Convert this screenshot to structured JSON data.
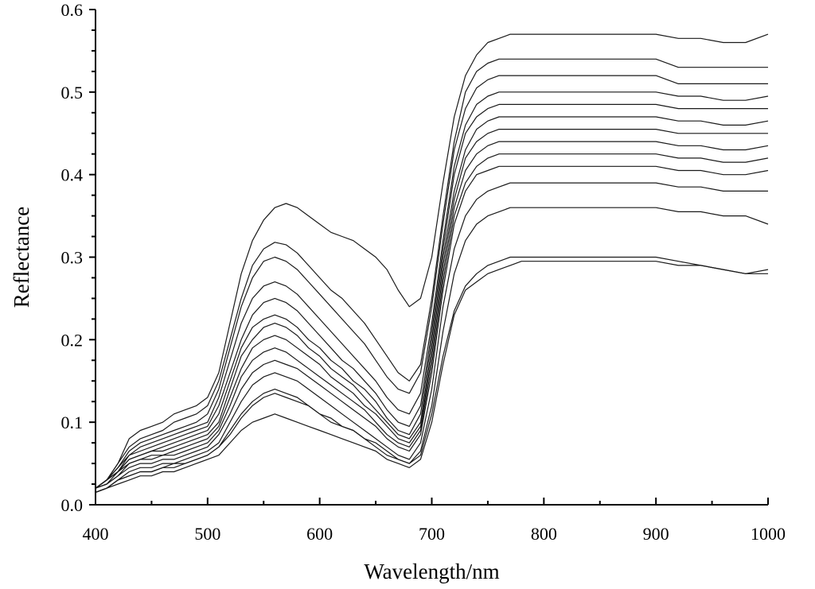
{
  "chart_data": {
    "type": "line",
    "title": "",
    "xlabel": "Wavelength/nm",
    "ylabel": "Reflectance",
    "xlim": [
      400,
      1000
    ],
    "ylim": [
      0,
      0.6
    ],
    "x_ticks": [
      400,
      500,
      600,
      700,
      800,
      900,
      1000
    ],
    "x_tick_labels": [
      "400",
      "500",
      "600",
      "700",
      "800",
      "900",
      "1000"
    ],
    "y_ticks": [
      0.0,
      0.1,
      0.2,
      0.3,
      0.4,
      0.5,
      0.6
    ],
    "y_tick_labels": [
      "0.0",
      "0.1",
      "0.2",
      "0.3",
      "0.4",
      "0.5",
      "0.6"
    ],
    "grid": false,
    "legend": "none",
    "line_color": "#1a1a1a",
    "x": [
      400,
      410,
      420,
      430,
      440,
      450,
      460,
      470,
      480,
      490,
      500,
      510,
      520,
      530,
      540,
      550,
      560,
      570,
      580,
      590,
      600,
      610,
      620,
      630,
      640,
      650,
      660,
      670,
      680,
      690,
      700,
      710,
      720,
      730,
      740,
      750,
      760,
      770,
      780,
      790,
      800,
      820,
      840,
      860,
      880,
      900,
      920,
      940,
      960,
      980,
      1000
    ],
    "series": [
      {
        "values": [
          0.02,
          0.03,
          0.05,
          0.08,
          0.09,
          0.095,
          0.1,
          0.11,
          0.115,
          0.12,
          0.13,
          0.16,
          0.22,
          0.28,
          0.32,
          0.345,
          0.36,
          0.365,
          0.36,
          0.35,
          0.34,
          0.33,
          0.325,
          0.32,
          0.31,
          0.3,
          0.285,
          0.26,
          0.24,
          0.25,
          0.3,
          0.39,
          0.47,
          0.52,
          0.545,
          0.56,
          0.565,
          0.57,
          0.57,
          0.57,
          0.57,
          0.57,
          0.57,
          0.57,
          0.57,
          0.57,
          0.565,
          0.565,
          0.56,
          0.56,
          0.57
        ]
      },
      {
        "values": [
          0.02,
          0.03,
          0.05,
          0.07,
          0.08,
          0.085,
          0.09,
          0.1,
          0.105,
          0.11,
          0.12,
          0.15,
          0.2,
          0.25,
          0.29,
          0.31,
          0.318,
          0.315,
          0.305,
          0.29,
          0.275,
          0.26,
          0.25,
          0.235,
          0.22,
          0.2,
          0.18,
          0.16,
          0.15,
          0.17,
          0.25,
          0.35,
          0.44,
          0.5,
          0.525,
          0.535,
          0.54,
          0.54,
          0.54,
          0.54,
          0.54,
          0.54,
          0.54,
          0.54,
          0.54,
          0.54,
          0.53,
          0.53,
          0.53,
          0.53,
          0.53
        ]
      },
      {
        "values": [
          0.02,
          0.03,
          0.045,
          0.065,
          0.075,
          0.08,
          0.085,
          0.09,
          0.095,
          0.1,
          0.11,
          0.14,
          0.19,
          0.24,
          0.275,
          0.295,
          0.3,
          0.295,
          0.285,
          0.27,
          0.255,
          0.24,
          0.225,
          0.21,
          0.195,
          0.175,
          0.155,
          0.14,
          0.135,
          0.16,
          0.24,
          0.34,
          0.43,
          0.48,
          0.505,
          0.515,
          0.52,
          0.52,
          0.52,
          0.52,
          0.52,
          0.52,
          0.52,
          0.52,
          0.52,
          0.52,
          0.51,
          0.51,
          0.51,
          0.51,
          0.51
        ]
      },
      {
        "values": [
          0.02,
          0.03,
          0.045,
          0.06,
          0.07,
          0.075,
          0.08,
          0.085,
          0.09,
          0.095,
          0.1,
          0.13,
          0.175,
          0.22,
          0.25,
          0.265,
          0.27,
          0.265,
          0.255,
          0.24,
          0.225,
          0.21,
          0.195,
          0.18,
          0.165,
          0.15,
          0.13,
          0.115,
          0.11,
          0.135,
          0.22,
          0.32,
          0.41,
          0.46,
          0.485,
          0.495,
          0.5,
          0.5,
          0.5,
          0.5,
          0.5,
          0.5,
          0.5,
          0.5,
          0.5,
          0.5,
          0.495,
          0.495,
          0.49,
          0.49,
          0.495
        ]
      },
      {
        "values": [
          0.02,
          0.03,
          0.04,
          0.06,
          0.065,
          0.07,
          0.075,
          0.08,
          0.085,
          0.09,
          0.095,
          0.12,
          0.16,
          0.2,
          0.23,
          0.245,
          0.25,
          0.245,
          0.235,
          0.22,
          0.205,
          0.19,
          0.175,
          0.165,
          0.15,
          0.135,
          0.115,
          0.1,
          0.095,
          0.12,
          0.21,
          0.31,
          0.4,
          0.45,
          0.47,
          0.48,
          0.485,
          0.485,
          0.485,
          0.485,
          0.485,
          0.485,
          0.485,
          0.485,
          0.485,
          0.485,
          0.48,
          0.48,
          0.48,
          0.48,
          0.48
        ]
      },
      {
        "values": [
          0.02,
          0.03,
          0.04,
          0.055,
          0.06,
          0.065,
          0.07,
          0.075,
          0.08,
          0.085,
          0.09,
          0.11,
          0.15,
          0.19,
          0.215,
          0.225,
          0.23,
          0.225,
          0.215,
          0.2,
          0.19,
          0.175,
          0.165,
          0.15,
          0.14,
          0.125,
          0.105,
          0.09,
          0.085,
          0.11,
          0.2,
          0.3,
          0.38,
          0.43,
          0.455,
          0.465,
          0.47,
          0.47,
          0.47,
          0.47,
          0.47,
          0.47,
          0.47,
          0.47,
          0.47,
          0.47,
          0.465,
          0.465,
          0.46,
          0.46,
          0.465
        ]
      },
      {
        "values": [
          0.02,
          0.03,
          0.04,
          0.055,
          0.06,
          0.065,
          0.065,
          0.07,
          0.075,
          0.08,
          0.085,
          0.1,
          0.14,
          0.18,
          0.2,
          0.215,
          0.22,
          0.215,
          0.205,
          0.19,
          0.18,
          0.165,
          0.155,
          0.145,
          0.13,
          0.115,
          0.1,
          0.085,
          0.08,
          0.1,
          0.19,
          0.29,
          0.37,
          0.42,
          0.44,
          0.45,
          0.455,
          0.455,
          0.455,
          0.455,
          0.455,
          0.455,
          0.455,
          0.455,
          0.455,
          0.455,
          0.45,
          0.45,
          0.45,
          0.45,
          0.45
        ]
      },
      {
        "values": [
          0.02,
          0.025,
          0.04,
          0.05,
          0.055,
          0.06,
          0.06,
          0.065,
          0.07,
          0.075,
          0.08,
          0.095,
          0.13,
          0.165,
          0.19,
          0.2,
          0.205,
          0.2,
          0.19,
          0.18,
          0.17,
          0.155,
          0.145,
          0.135,
          0.12,
          0.11,
          0.095,
          0.08,
          0.075,
          0.095,
          0.18,
          0.28,
          0.36,
          0.405,
          0.425,
          0.435,
          0.44,
          0.44,
          0.44,
          0.44,
          0.44,
          0.44,
          0.44,
          0.44,
          0.44,
          0.44,
          0.435,
          0.435,
          0.43,
          0.43,
          0.435
        ]
      },
      {
        "values": [
          0.02,
          0.025,
          0.035,
          0.05,
          0.055,
          0.055,
          0.06,
          0.06,
          0.065,
          0.07,
          0.075,
          0.09,
          0.12,
          0.155,
          0.175,
          0.185,
          0.19,
          0.185,
          0.175,
          0.165,
          0.155,
          0.145,
          0.135,
          0.125,
          0.115,
          0.1,
          0.085,
          0.075,
          0.07,
          0.09,
          0.17,
          0.27,
          0.35,
          0.39,
          0.41,
          0.42,
          0.425,
          0.425,
          0.425,
          0.425,
          0.425,
          0.425,
          0.425,
          0.425,
          0.425,
          0.425,
          0.42,
          0.42,
          0.415,
          0.415,
          0.42
        ]
      },
      {
        "values": [
          0.02,
          0.025,
          0.035,
          0.045,
          0.05,
          0.05,
          0.055,
          0.055,
          0.06,
          0.065,
          0.07,
          0.085,
          0.11,
          0.14,
          0.16,
          0.17,
          0.175,
          0.17,
          0.165,
          0.155,
          0.145,
          0.135,
          0.125,
          0.115,
          0.105,
          0.095,
          0.08,
          0.07,
          0.065,
          0.085,
          0.16,
          0.26,
          0.34,
          0.38,
          0.4,
          0.405,
          0.41,
          0.41,
          0.41,
          0.41,
          0.41,
          0.41,
          0.41,
          0.41,
          0.41,
          0.41,
          0.405,
          0.405,
          0.4,
          0.4,
          0.405
        ]
      },
      {
        "values": [
          0.015,
          0.02,
          0.03,
          0.04,
          0.045,
          0.045,
          0.05,
          0.05,
          0.055,
          0.06,
          0.065,
          0.075,
          0.1,
          0.125,
          0.145,
          0.155,
          0.16,
          0.155,
          0.15,
          0.14,
          0.13,
          0.12,
          0.11,
          0.1,
          0.09,
          0.08,
          0.07,
          0.06,
          0.055,
          0.075,
          0.14,
          0.24,
          0.31,
          0.35,
          0.37,
          0.38,
          0.385,
          0.39,
          0.39,
          0.39,
          0.39,
          0.39,
          0.39,
          0.39,
          0.39,
          0.39,
          0.385,
          0.385,
          0.38,
          0.38,
          0.38
        ]
      },
      {
        "values": [
          0.015,
          0.02,
          0.03,
          0.035,
          0.04,
          0.04,
          0.045,
          0.045,
          0.05,
          0.055,
          0.06,
          0.07,
          0.085,
          0.105,
          0.12,
          0.13,
          0.135,
          0.13,
          0.125,
          0.12,
          0.11,
          0.1,
          0.095,
          0.09,
          0.08,
          0.07,
          0.06,
          0.055,
          0.05,
          0.065,
          0.12,
          0.21,
          0.28,
          0.32,
          0.34,
          0.35,
          0.355,
          0.36,
          0.36,
          0.36,
          0.36,
          0.36,
          0.36,
          0.36,
          0.36,
          0.36,
          0.355,
          0.355,
          0.35,
          0.35,
          0.34
        ]
      },
      {
        "values": [
          0.015,
          0.02,
          0.025,
          0.03,
          0.035,
          0.035,
          0.04,
          0.04,
          0.045,
          0.05,
          0.055,
          0.06,
          0.075,
          0.09,
          0.1,
          0.105,
          0.11,
          0.105,
          0.1,
          0.095,
          0.09,
          0.085,
          0.08,
          0.075,
          0.07,
          0.065,
          0.055,
          0.05,
          0.045,
          0.055,
          0.1,
          0.17,
          0.23,
          0.26,
          0.27,
          0.28,
          0.285,
          0.29,
          0.295,
          0.295,
          0.295,
          0.295,
          0.295,
          0.295,
          0.295,
          0.295,
          0.29,
          0.29,
          0.285,
          0.28,
          0.28
        ]
      },
      {
        "values": [
          0.015,
          0.02,
          0.03,
          0.035,
          0.04,
          0.04,
          0.045,
          0.05,
          0.05,
          0.055,
          0.06,
          0.07,
          0.09,
          0.11,
          0.125,
          0.135,
          0.14,
          0.135,
          0.13,
          0.12,
          0.11,
          0.105,
          0.095,
          0.09,
          0.08,
          0.075,
          0.065,
          0.055,
          0.05,
          0.06,
          0.11,
          0.18,
          0.235,
          0.265,
          0.28,
          0.29,
          0.295,
          0.3,
          0.3,
          0.3,
          0.3,
          0.3,
          0.3,
          0.3,
          0.3,
          0.3,
          0.295,
          0.29,
          0.285,
          0.28,
          0.285
        ]
      }
    ]
  }
}
